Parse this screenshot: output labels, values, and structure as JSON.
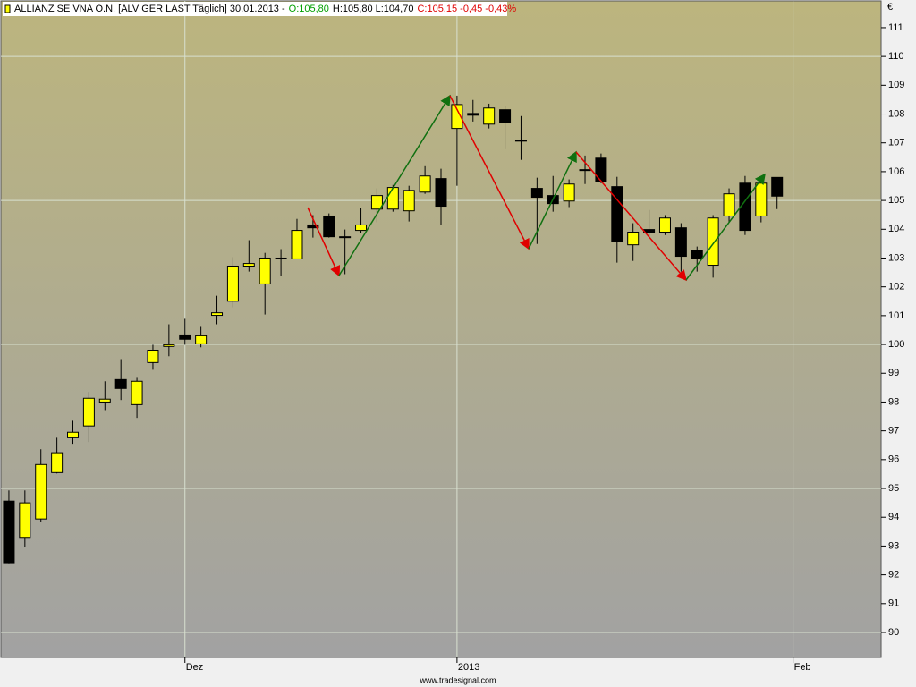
{
  "chart_data": {
    "type": "candlestick",
    "title_parts": [
      {
        "text": "ALLIANZ SE VNA O.N. [ALV GER LAST Täglich] 30.01.2013 -",
        "color": "#000000"
      },
      {
        "text": "O:105,80",
        "color": "#00a000"
      },
      {
        "text": "H:105,80 L:104,70",
        "color": "#000000"
      },
      {
        "text": "C:105,15 -0,45 -0,43%",
        "color": "#e00000"
      }
    ],
    "currency": "€",
    "footer": "www.tradesignal.com",
    "up_color": "#ffff00",
    "down_color": "#000000",
    "categories": [
      null,
      null,
      null,
      null,
      null,
      null,
      null,
      null,
      null,
      null,
      null,
      "Dez",
      null,
      null,
      null,
      null,
      null,
      null,
      null,
      null,
      null,
      null,
      null,
      null,
      null,
      null,
      null,
      null,
      "2013",
      null,
      null,
      null,
      null,
      null,
      null,
      null,
      null,
      null,
      null,
      null,
      null,
      null,
      null,
      null,
      null,
      null,
      null,
      null,
      null,
      "Feb",
      null,
      null,
      null,
      null,
      null
    ],
    "open": [
      94.56,
      93.3,
      93.94,
      95.55,
      96.76,
      97.17,
      98.0,
      98.78,
      97.91,
      99.37,
      99.93,
      100.33,
      100.02,
      101.01,
      101.5,
      102.72,
      102.1,
      103.0,
      102.97,
      104.15,
      104.46,
      103.74,
      103.96,
      104.7,
      104.7,
      104.64,
      105.29,
      105.76,
      107.5,
      108.02,
      107.65,
      108.15,
      107.09,
      105.42,
      105.17,
      104.98,
      106.07,
      106.47,
      105.48,
      103.46,
      103.99,
      103.9,
      104.05,
      103.25,
      102.75,
      104.46,
      105.6,
      104.46,
      105.8,
      null,
      null,
      null,
      null,
      null,
      null
    ],
    "high": [
      94.93,
      94.93,
      96.36,
      96.76,
      97.35,
      98.35,
      98.72,
      99.49,
      98.84,
      99.99,
      100.7,
      100.89,
      100.64,
      101.69,
      103.03,
      103.62,
      103.18,
      103.31,
      104.36,
      104.49,
      104.55,
      103.99,
      104.73,
      105.42,
      105.54,
      105.51,
      106.19,
      106.1,
      108.64,
      108.49,
      108.36,
      108.27,
      107.93,
      105.79,
      105.85,
      105.73,
      106.56,
      106.63,
      105.82,
      104.21,
      104.67,
      104.49,
      104.21,
      103.4,
      104.49,
      105.42,
      105.85,
      105.79,
      105.8,
      null,
      null,
      null,
      null,
      null,
      null
    ],
    "low": [
      92.4,
      92.95,
      93.85,
      95.52,
      96.55,
      96.61,
      97.72,
      98.07,
      97.45,
      99.12,
      99.59,
      99.99,
      99.9,
      100.7,
      101.29,
      102.53,
      101.04,
      102.38,
      102.97,
      103.71,
      103.71,
      102.44,
      103.87,
      104.24,
      104.61,
      104.27,
      105.23,
      104.15,
      105.51,
      107.74,
      107.5,
      106.78,
      106.41,
      103.49,
      104.61,
      104.77,
      105.57,
      105.6,
      102.84,
      102.9,
      103.68,
      103.8,
      102.53,
      102.53,
      102.32,
      104.24,
      103.8,
      104.24,
      104.7,
      null,
      null,
      null,
      null,
      null,
      null
    ],
    "close": [
      92.42,
      94.5,
      95.83,
      96.24,
      96.95,
      98.13,
      98.1,
      98.47,
      98.72,
      99.8,
      99.99,
      100.18,
      100.3,
      101.1,
      102.72,
      102.81,
      103.0,
      102.97,
      103.96,
      104.05,
      103.74,
      103.74,
      104.15,
      105.17,
      105.45,
      105.35,
      105.85,
      104.8,
      108.33,
      107.96,
      108.21,
      107.71,
      107.09,
      105.11,
      104.89,
      105.57,
      106.07,
      105.67,
      103.56,
      103.9,
      103.87,
      104.39,
      103.06,
      102.97,
      104.39,
      105.23,
      103.96,
      105.6,
      105.15,
      null,
      null,
      null,
      null,
      null,
      null
    ],
    "ylim": [
      89.13,
      111.93
    ],
    "yticks": [
      90,
      91,
      92,
      93,
      94,
      95,
      96,
      97,
      98,
      99,
      100,
      101,
      102,
      103,
      104,
      105,
      106,
      107,
      108,
      109,
      110,
      111
    ],
    "grid": true
  }
}
